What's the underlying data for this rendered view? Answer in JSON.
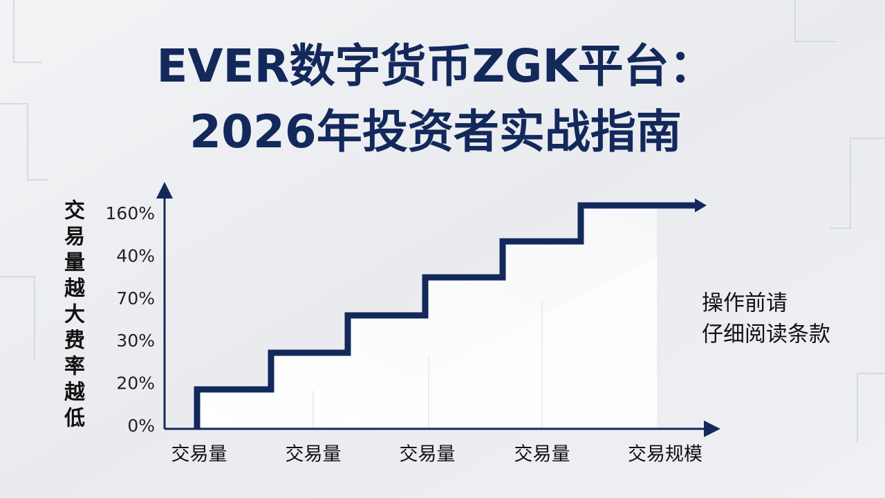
{
  "header": {
    "title_lines": [
      "EVER数字货币ZGK平台：",
      "2026年投资者实战指南"
    ]
  },
  "diagram": {
    "y_axis_label": [
      "交",
      "易",
      "量",
      "越",
      "大",
      "费",
      "率",
      "越",
      "低"
    ],
    "y_labels": [
      "0%",
      "20%",
      "30%",
      "70%",
      "40%",
      "160%"
    ],
    "x_labels": [
      "交易量",
      "交易量",
      "交易量",
      "交易量",
      "交易规模"
    ],
    "note_lines": [
      "操作前请",
      "仔细阅读条款"
    ]
  }
}
